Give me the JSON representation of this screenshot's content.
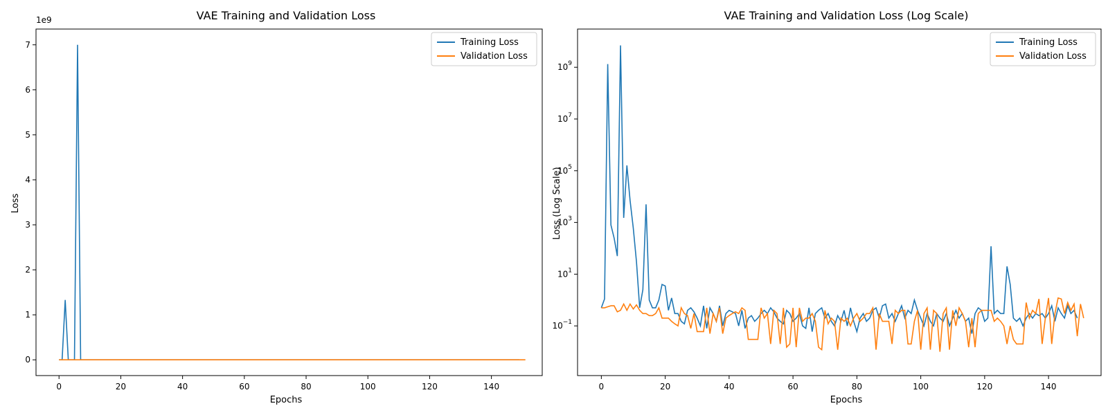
{
  "chart_data": [
    {
      "type": "line",
      "title": "VAE Training and Validation Loss",
      "xlabel": "Epochs",
      "ylabel": "Loss",
      "y_offset_label": "1e9",
      "xlim": [
        -7.45,
        156.45
      ],
      "ylim": [
        -0.35,
        7.35
      ],
      "yscale": "linear",
      "xticks": [
        0,
        20,
        40,
        60,
        80,
        100,
        120,
        140
      ],
      "yticks": [
        0,
        1,
        2,
        3,
        4,
        5,
        6,
        7
      ],
      "ytick_labels": [
        "0",
        "1",
        "2",
        "3",
        "4",
        "5",
        "6",
        "7"
      ],
      "legend": "top-right",
      "grid": false,
      "series_ref": "loss"
    },
    {
      "type": "line",
      "title": "VAE Training and Validation Loss (Log Scale)",
      "xlabel": "Epochs",
      "ylabel": "Loss (Log Scale)",
      "xlim": [
        -7.45,
        156.45
      ],
      "ylim": [
        0.0012,
        30000000000
      ],
      "yscale": "log",
      "xticks": [
        0,
        20,
        40,
        60,
        80,
        100,
        120,
        140
      ],
      "yticks": [
        0.1,
        10,
        1000,
        100000,
        10000000,
        1000000000
      ],
      "ytick_labels": [
        "10^-1",
        "10^1",
        "10^3",
        "10^5",
        "10^7",
        "10^9"
      ],
      "legend": "top-right",
      "grid": false,
      "series_ref": "loss"
    }
  ],
  "series": [
    {
      "name": "Training Loss",
      "color": "#1f77b4",
      "values": [
        0.5,
        1.1,
        1330000000,
        800,
        250,
        50,
        7000000000,
        1500,
        160000,
        7000,
        600,
        30,
        0.5,
        2.5,
        5000,
        1.0,
        0.5,
        0.5,
        1.0,
        4.0,
        3.5,
        0.4,
        1.2,
        0.3,
        0.3,
        0.15,
        0.12,
        0.4,
        0.5,
        0.35,
        0.2,
        0.1,
        0.6,
        0.08,
        0.5,
        0.3,
        0.15,
        0.6,
        0.1,
        0.3,
        0.4,
        0.35,
        0.3,
        0.1,
        0.4,
        0.08,
        0.2,
        0.25,
        0.15,
        0.2,
        0.3,
        0.4,
        0.3,
        0.5,
        0.35,
        0.2,
        0.15,
        0.12,
        0.4,
        0.3,
        0.15,
        0.2,
        0.3,
        0.1,
        0.08,
        0.5,
        0.06,
        0.3,
        0.4,
        0.5,
        0.2,
        0.3,
        0.15,
        0.1,
        0.25,
        0.15,
        0.4,
        0.1,
        0.5,
        0.15,
        0.06,
        0.2,
        0.3,
        0.15,
        0.2,
        0.4,
        0.5,
        0.2,
        0.6,
        0.7,
        0.2,
        0.3,
        0.15,
        0.3,
        0.6,
        0.2,
        0.4,
        0.3,
        1.0,
        0.4,
        0.2,
        0.1,
        0.3,
        0.15,
        0.1,
        0.3,
        0.2,
        0.15,
        0.3,
        0.1,
        0.2,
        0.4,
        0.2,
        0.3,
        0.15,
        0.2,
        0.05,
        0.3,
        0.5,
        0.4,
        0.15,
        0.2,
        120,
        0.3,
        0.4,
        0.3,
        0.3,
        20,
        4,
        0.2,
        0.15,
        0.2,
        0.1,
        0.2,
        0.3,
        0.2,
        0.3,
        0.25,
        0.3,
        0.2,
        0.3,
        0.6,
        0.15,
        0.5,
        0.3,
        0.2,
        0.6,
        0.3,
        0.4,
        0.2
      ]
    },
    {
      "name": "Validation Loss",
      "color": "#ff7f0e",
      "values": [
        0.5,
        0.5,
        0.55,
        0.6,
        0.6,
        0.35,
        0.4,
        0.7,
        0.4,
        0.7,
        0.45,
        0.65,
        0.4,
        0.3,
        0.3,
        0.25,
        0.25,
        0.3,
        0.5,
        0.2,
        0.2,
        0.2,
        0.15,
        0.12,
        0.1,
        0.5,
        0.3,
        0.25,
        0.08,
        0.3,
        0.06,
        0.06,
        0.06,
        0.5,
        0.05,
        0.3,
        0.15,
        0.5,
        0.05,
        0.2,
        0.25,
        0.3,
        0.35,
        0.3,
        0.5,
        0.4,
        0.03,
        0.03,
        0.03,
        0.03,
        0.5,
        0.2,
        0.3,
        0.02,
        0.4,
        0.3,
        0.02,
        0.5,
        0.015,
        0.02,
        0.5,
        0.015,
        0.5,
        0.15,
        0.2,
        0.2,
        0.3,
        0.15,
        0.015,
        0.012,
        0.4,
        0.12,
        0.2,
        0.15,
        0.012,
        0.2,
        0.15,
        0.2,
        0.1,
        0.2,
        0.3,
        0.15,
        0.2,
        0.3,
        0.3,
        0.5,
        0.012,
        0.3,
        0.15,
        0.15,
        0.15,
        0.02,
        0.4,
        0.3,
        0.4,
        0.4,
        0.02,
        0.02,
        0.15,
        0.4,
        0.012,
        0.3,
        0.5,
        0.012,
        0.4,
        0.3,
        0.01,
        0.3,
        0.5,
        0.012,
        0.4,
        0.1,
        0.5,
        0.3,
        0.15,
        0.015,
        0.2,
        0.015,
        0.3,
        0.4,
        0.4,
        0.4,
        0.4,
        0.15,
        0.2,
        0.15,
        0.1,
        0.02,
        0.1,
        0.03,
        0.02,
        0.02,
        0.02,
        0.8,
        0.2,
        0.4,
        0.3,
        1.1,
        0.02,
        0.2,
        1.2,
        0.02,
        0.3,
        1.2,
        1.1,
        0.3,
        0.8,
        0.4,
        0.7,
        0.04,
        0.7,
        0.2
      ]
    }
  ]
}
